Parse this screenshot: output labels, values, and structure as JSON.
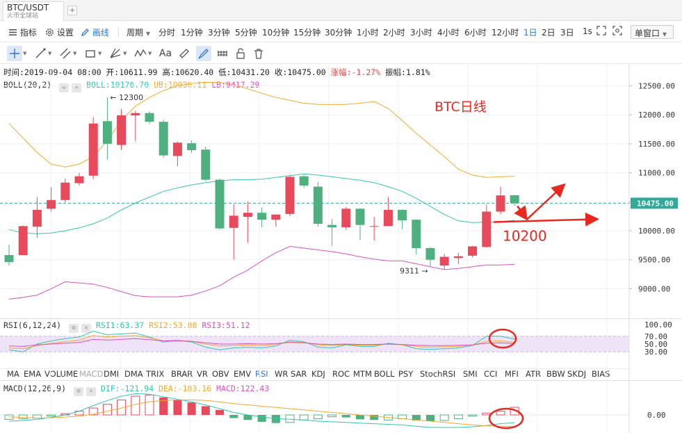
{
  "tab": {
    "title": "BTC/USDT",
    "subtitle": "火币全球站",
    "add": "+"
  },
  "toolbar": {
    "indicators": "指标",
    "settings": "设置",
    "draw": "画线",
    "period_label": "周期",
    "periods": [
      "分时",
      "1分钟",
      "3分钟",
      "5分钟",
      "10分钟",
      "15分钟",
      "30分钟",
      "1小时",
      "2小时",
      "3小时",
      "4小时",
      "6小时",
      "12小时",
      "1日",
      "2日",
      "3日"
    ],
    "active_period": "1日",
    "seconds": "1s",
    "window_mode": "单窗口"
  },
  "drawing_tools": [
    "crosshair-icon",
    "line-icon",
    "parallel-lines-icon",
    "rectangle-icon",
    "fork-icon",
    "wave-icon",
    "text-icon",
    "ruler-icon",
    "brush-icon",
    "magnet-icon",
    "lock-icon",
    "trash-icon"
  ],
  "info_bar": {
    "time": "时间:2019-09-04 08:00",
    "open": "开:10611.99",
    "high": "高:10620.40",
    "low": "低:10431.20",
    "close": "收:10475.00",
    "change": "涨幅:-1.27%",
    "amplitude": "振幅:1.81%"
  },
  "boll_legend": {
    "name": "BOLL(20,2)",
    "boll": "BOLL:10176.70",
    "ub": "UB:10936.11",
    "lb": "LB:9417.29"
  },
  "rsi_legend": {
    "name": "RSI(6,12,24)",
    "rsi1": "RSI1:63.37",
    "rsi2": "RSI2:53.88",
    "rsi3": "RSI3:51.12"
  },
  "macd_legend": {
    "name": "MACD(12,26,9)",
    "dif": "DIF:-121.94",
    "dea": "DEA:-183.16",
    "macd": "MACD:122.43"
  },
  "indicator_tabs": [
    "MA",
    "EMA",
    "VOLUME",
    "MACD",
    "DMI",
    "DMA",
    "TRIX",
    "BRAR",
    "VR",
    "OBV",
    "EMV",
    "RSI",
    "WR",
    "SAR",
    "KDJ",
    "ROC",
    "MTM",
    "BOLL",
    "PSY",
    "StochRSI",
    "SMI",
    "CCI",
    "MFI",
    "ATR",
    "BBW",
    "SKDJ",
    "BIAS"
  ],
  "indicator_tab_state": {
    "dim": "MACD",
    "active": "RSI"
  },
  "colors": {
    "up": "#e74a5a",
    "down": "#4eb07f",
    "boll_mid": "#33c6b0",
    "boll_ub": "#f2a92b",
    "boll_lb": "#d94fc6",
    "annotation": "#e8281e",
    "accent": "#2f74d0"
  },
  "chart_data": [
    {
      "type": "candlestick",
      "title": "BTC日线",
      "price_axis_ticks": [
        "12500.00",
        "12000.00",
        "11500.00",
        "11000.00",
        "10500.00",
        "10000.00",
        "9500.00",
        "9000.00"
      ],
      "current_price_label": "10475.00",
      "ylim": [
        8700,
        12900
      ],
      "candles": [
        {
          "o": 9580,
          "h": 9760,
          "l": 9400,
          "c": 9460
        },
        {
          "o": 9580,
          "h": 10090,
          "l": 9580,
          "c": 10080
        },
        {
          "o": 10070,
          "h": 10580,
          "l": 9880,
          "c": 10360
        },
        {
          "o": 10380,
          "h": 10750,
          "l": 10330,
          "c": 10530
        },
        {
          "o": 10530,
          "h": 10900,
          "l": 10490,
          "c": 10830
        },
        {
          "o": 10820,
          "h": 11000,
          "l": 10780,
          "c": 10940
        },
        {
          "o": 10950,
          "h": 11960,
          "l": 10890,
          "c": 11850
        },
        {
          "o": 11890,
          "h": 12300,
          "l": 11230,
          "c": 11500
        },
        {
          "o": 11480,
          "h": 12100,
          "l": 11390,
          "c": 11990
        },
        {
          "o": 11990,
          "h": 12070,
          "l": 11550,
          "c": 12030
        },
        {
          "o": 12030,
          "h": 12060,
          "l": 11840,
          "c": 11880
        },
        {
          "o": 11880,
          "h": 11920,
          "l": 11260,
          "c": 11300
        },
        {
          "o": 11290,
          "h": 11540,
          "l": 11110,
          "c": 11520
        },
        {
          "o": 11510,
          "h": 11560,
          "l": 11340,
          "c": 11390
        },
        {
          "o": 11400,
          "h": 11450,
          "l": 10860,
          "c": 10880
        },
        {
          "o": 10880,
          "h": 10900,
          "l": 10020,
          "c": 10040
        },
        {
          "o": 10050,
          "h": 10460,
          "l": 9500,
          "c": 10260
        },
        {
          "o": 10240,
          "h": 10500,
          "l": 9790,
          "c": 10310
        },
        {
          "o": 10310,
          "h": 10400,
          "l": 10060,
          "c": 10190
        },
        {
          "o": 10190,
          "h": 10270,
          "l": 10070,
          "c": 10280
        },
        {
          "o": 10290,
          "h": 10960,
          "l": 10250,
          "c": 10930
        },
        {
          "o": 10940,
          "h": 10960,
          "l": 10740,
          "c": 10780
        },
        {
          "o": 10760,
          "h": 10840,
          "l": 10070,
          "c": 10120
        },
        {
          "o": 10100,
          "h": 10200,
          "l": 9740,
          "c": 10060
        },
        {
          "o": 10060,
          "h": 10410,
          "l": 10010,
          "c": 10380
        },
        {
          "o": 10380,
          "h": 10390,
          "l": 9840,
          "c": 10100
        },
        {
          "o": 10080,
          "h": 10240,
          "l": 9830,
          "c": 10080
        },
        {
          "o": 10080,
          "h": 10580,
          "l": 10080,
          "c": 10360
        },
        {
          "o": 10360,
          "h": 10370,
          "l": 10030,
          "c": 10180
        },
        {
          "o": 10190,
          "h": 10200,
          "l": 9590,
          "c": 9700
        },
        {
          "o": 9700,
          "h": 9720,
          "l": 9380,
          "c": 9500
        },
        {
          "o": 9400,
          "h": 9600,
          "l": 9330,
          "c": 9550
        },
        {
          "o": 9530,
          "h": 9620,
          "l": 9420,
          "c": 9560
        },
        {
          "o": 9570,
          "h": 9740,
          "l": 9540,
          "c": 9730
        },
        {
          "o": 9720,
          "h": 10450,
          "l": 9710,
          "c": 10330
        },
        {
          "o": 10330,
          "h": 10760,
          "l": 10280,
          "c": 10610
        },
        {
          "o": 10611.99,
          "h": 10620.4,
          "l": 10431.2,
          "c": 10475
        }
      ],
      "boll": {
        "mid": [
          10020,
          9960,
          9950,
          9960,
          10000,
          10050,
          10120,
          10220,
          10360,
          10480,
          10580,
          10680,
          10740,
          10790,
          10830,
          10860,
          10880,
          10880,
          10890,
          10920,
          10950,
          10980,
          10960,
          10930,
          10900,
          10870,
          10830,
          10760,
          10680,
          10560,
          10420,
          10280,
          10170,
          10140,
          10150,
          10160,
          10180
        ],
        "ub": [
          11850,
          11600,
          11350,
          11150,
          11100,
          11150,
          11280,
          11550,
          11900,
          12150,
          12300,
          12420,
          12500,
          12540,
          12560,
          12560,
          12520,
          12450,
          12370,
          12300,
          12250,
          12200,
          12180,
          12180,
          12180,
          12200,
          12230,
          12110,
          11900,
          11680,
          11480,
          11280,
          11060,
          10960,
          10920,
          10930,
          10940
        ],
        "lb": [
          8820,
          8850,
          8890,
          9000,
          9120,
          9100,
          9080,
          9020,
          8950,
          8880,
          8860,
          8860,
          8860,
          8890,
          8960,
          9050,
          9200,
          9320,
          9480,
          9620,
          9730,
          9700,
          9670,
          9640,
          9600,
          9550,
          9510,
          9480,
          9480,
          9430,
          9380,
          9330,
          9350,
          9380,
          9410,
          9410,
          9420
        ]
      },
      "annotations": {
        "high": "12300",
        "low": "9311",
        "target": "10200"
      }
    },
    {
      "type": "line",
      "name": "RSI(6,12,24)",
      "y_ticks": [
        "100.00",
        "70.00",
        "50.00",
        "30.00"
      ],
      "ylim": [
        0,
        100
      ],
      "series": [
        {
          "name": "RSI1",
          "values": [
            35,
            30,
            50,
            58,
            64,
            68,
            83,
            74,
            76,
            78,
            68,
            55,
            60,
            55,
            42,
            35,
            40,
            42,
            40,
            45,
            60,
            56,
            42,
            40,
            48,
            44,
            44,
            52,
            48,
            38,
            36,
            38,
            40,
            46,
            70,
            70,
            63
          ]
        },
        {
          "name": "RSI2",
          "values": [
            40,
            38,
            46,
            52,
            56,
            60,
            72,
            68,
            70,
            72,
            66,
            58,
            60,
            57,
            50,
            45,
            46,
            48,
            46,
            49,
            56,
            54,
            48,
            46,
            49,
            47,
            47,
            50,
            48,
            44,
            42,
            43,
            44,
            47,
            57,
            58,
            54
          ]
        },
        {
          "name": "RSI3",
          "values": [
            45,
            44,
            48,
            50,
            52,
            54,
            62,
            60,
            62,
            64,
            61,
            58,
            58,
            57,
            53,
            50,
            50,
            51,
            50,
            51,
            54,
            53,
            50,
            49,
            50,
            49,
            49,
            50,
            49,
            47,
            46,
            46,
            47,
            48,
            52,
            53,
            51
          ]
        }
      ]
    },
    {
      "type": "bar",
      "name": "MACD(12,26,9)",
      "y_ticks": [
        "0.00"
      ],
      "ylim": [
        -300,
        450
      ],
      "histogram": [
        -70,
        -60,
        -50,
        -20,
        20,
        60,
        110,
        170,
        240,
        300,
        320,
        280,
        240,
        200,
        140,
        80,
        -50,
        -80,
        -110,
        -130,
        -120,
        -80,
        -60,
        -30,
        -40,
        -70,
        -80,
        -80,
        -60,
        -90,
        -100,
        -90,
        -60,
        -20,
        30,
        60,
        122.43
      ],
      "series": [
        {
          "name": "DIF",
          "values": [
            -100,
            -90,
            -70,
            -40,
            0,
            60,
            150,
            230,
            300,
            340,
            330,
            290,
            250,
            210,
            160,
            100,
            40,
            0,
            -30,
            -60,
            -70,
            -80,
            -100,
            -110,
            -120,
            -130,
            -140,
            -150,
            -160,
            -180,
            -200,
            -200,
            -200,
            -190,
            -170,
            -140,
            -122
          ]
        },
        {
          "name": "DEA",
          "values": [
            -30,
            -40,
            -50,
            -45,
            -35,
            -20,
            10,
            60,
            110,
            170,
            210,
            230,
            240,
            240,
            230,
            210,
            180,
            160,
            140,
            120,
            100,
            80,
            60,
            40,
            20,
            0,
            -20,
            -40,
            -60,
            -80,
            -100,
            -120,
            -140,
            -160,
            -175,
            -180,
            -183
          ]
        }
      ]
    }
  ]
}
